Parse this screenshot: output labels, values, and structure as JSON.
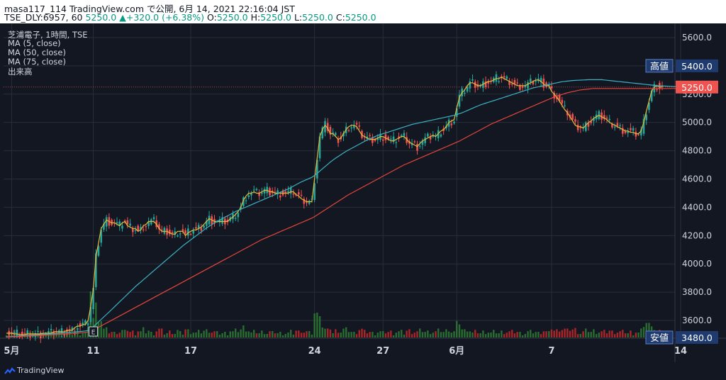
{
  "header": {
    "line1": "masa117_114 TradingView.com で公開, 6月 14, 2021 22:16:04 JST",
    "symbol": "TSE_DLY:6957, 60",
    "last": "5250.0",
    "change_arrow": "▲",
    "change": "+320.0 (+6.38%)",
    "o_label": "O:",
    "o_val": "5250.0",
    "h_label": "H:",
    "h_val": "5250.0",
    "l_label": "L:",
    "l_val": "5250.0",
    "c_label": "C:",
    "c_val": "5250.0"
  },
  "legend": {
    "title": "芝浦電子, 1時間, TSE",
    "ma5": "MA (5, close)",
    "ma50": "MA (50, close)",
    "ma75": "MA (75, close)",
    "volume": "出来高"
  },
  "markers": {
    "high_label": "高値",
    "high_value": "5400.0",
    "last_value": "5250.0",
    "low_label": "安値",
    "low_value": "3480.0",
    "earnings": "E"
  },
  "footer": {
    "brand": "TradingView"
  },
  "colors": {
    "up": "#26a69a",
    "down": "#ef5350",
    "ma5": "#e3b93b",
    "ma50": "#3bb3c4",
    "ma75": "#e5453a",
    "vol_up": "#2e7d32",
    "vol_down": "#c62828",
    "background": "#131722",
    "grid": "#2a2e39",
    "text": "#d1d4dc"
  },
  "chart_data": {
    "type": "line",
    "y_axis": {
      "min": 3480,
      "max": 5700,
      "ticks": [
        3600,
        3800,
        4000,
        4200,
        4400,
        4600,
        4800,
        5000,
        5200,
        5400,
        5600
      ],
      "position": "right"
    },
    "x_ticks": [
      {
        "label": "5月",
        "bar": 2
      },
      {
        "label": "11",
        "bar": 33
      },
      {
        "label": "17",
        "bar": 70
      },
      {
        "label": "24",
        "bar": 117
      },
      {
        "label": "27",
        "bar": 143
      },
      {
        "label": "6月",
        "bar": 171
      },
      {
        "label": "7",
        "bar": 207
      },
      {
        "label": "14",
        "bar": 256
      }
    ],
    "series": [
      {
        "name": "MA (5, close)",
        "values": [
          3510,
          3510,
          3510,
          3505,
          3505,
          3500,
          3500,
          3500,
          3505,
          3505,
          3505,
          3505,
          3505,
          3505,
          3510,
          3510,
          3510,
          3510,
          3520,
          3520,
          3520,
          3520,
          3520,
          3530,
          3530,
          3530,
          3550,
          3560,
          3560,
          3570,
          3570,
          3600,
          3700,
          3820,
          4050,
          4150,
          4250,
          4280,
          4310,
          4300,
          4290,
          4290,
          4280,
          4270,
          4290,
          4300,
          4270,
          4260,
          4250,
          4250,
          4230,
          4240,
          4270,
          4280,
          4300,
          4300,
          4300,
          4280,
          4250,
          4230,
          4230,
          4230,
          4220,
          4210,
          4210,
          4230,
          4230,
          4230,
          4200,
          4220,
          4230,
          4240,
          4240,
          4250,
          4260,
          4280,
          4300,
          4320,
          4310,
          4300,
          4300,
          4300,
          4300,
          4300,
          4300,
          4320,
          4330,
          4350,
          4370,
          4400,
          4450,
          4480,
          4500,
          4500,
          4510,
          4500,
          4500,
          4510,
          4520,
          4520,
          4510,
          4510,
          4500,
          4500,
          4500,
          4500,
          4500,
          4500,
          4510,
          4510,
          4490,
          4480,
          4460,
          4450,
          4440,
          4440,
          4440,
          4600,
          4750,
          4900,
          4950,
          4980,
          4960,
          4920,
          4920,
          4900,
          4880,
          4890,
          4920,
          4950,
          4970,
          4980,
          4980,
          4970,
          4940,
          4910,
          4900,
          4890,
          4880,
          4880,
          4880,
          4890,
          4900,
          4900,
          4890,
          4880,
          4870,
          4870,
          4880,
          4890,
          4900,
          4900,
          4880,
          4860,
          4850,
          4840,
          4830,
          4850,
          4870,
          4880,
          4890,
          4900,
          4910,
          4900,
          4920,
          4940,
          4950,
          4970,
          5000,
          5010,
          5020,
          5100,
          5180,
          5210,
          5230,
          5260,
          5280,
          5280,
          5270,
          5260,
          5260,
          5270,
          5280,
          5290,
          5290,
          5300,
          5310,
          5310,
          5320,
          5310,
          5300,
          5290,
          5280,
          5270,
          5260,
          5260,
          5260,
          5260,
          5270,
          5280,
          5290,
          5300,
          5300,
          5290,
          5270,
          5260,
          5260,
          5220,
          5200,
          5180,
          5150,
          5120,
          5090,
          5070,
          5040,
          5010,
          4980,
          4970,
          4970,
          4960,
          4980,
          5000,
          5010,
          5030,
          5040,
          5050,
          5040,
          5030,
          5020,
          5000,
          4990,
          4980,
          4970,
          4960,
          4950,
          4940,
          4940,
          4930,
          4930,
          4920,
          4920,
          4940,
          5000,
          5080,
          5150,
          5220,
          5250,
          5260,
          5250,
          5250
        ]
      },
      {
        "name": "MA (50, close)",
        "values": [
          3485,
          3486,
          3487,
          3488,
          3490,
          3491,
          3492,
          3493,
          3494,
          3495,
          3497,
          3498,
          3499,
          3500,
          3502,
          3503,
          3504,
          3506,
          3507,
          3508,
          3510,
          3511,
          3512,
          3514,
          3515,
          3517,
          3518,
          3520,
          3522,
          3524,
          3526,
          3530,
          3540,
          3555,
          3572,
          3590,
          3608,
          3625,
          3643,
          3660,
          3678,
          3696,
          3714,
          3732,
          3750,
          3768,
          3786,
          3804,
          3822,
          3840,
          3856,
          3872,
          3888,
          3904,
          3920,
          3936,
          3952,
          3968,
          3984,
          4000,
          4016,
          4032,
          4048,
          4064,
          4080,
          4096,
          4112,
          4128,
          4142,
          4156,
          4170,
          4184,
          4198,
          4212,
          4226,
          4240,
          4254,
          4266,
          4278,
          4290,
          4300,
          4310,
          4320,
          4330,
          4340,
          4350,
          4360,
          4370,
          4378,
          4386,
          4394,
          4402,
          4410,
          4418,
          4426,
          4434,
          4442,
          4450,
          4458,
          4466,
          4474,
          4482,
          4490,
          4498,
          4506,
          4514,
          4522,
          4530,
          4540,
          4550,
          4560,
          4570,
          4580,
          4588,
          4596,
          4604,
          4612,
          4625,
          4640,
          4656,
          4672,
          4688,
          4704,
          4720,
          4734,
          4748,
          4760,
          4772,
          4784,
          4796,
          4806,
          4816,
          4826,
          4836,
          4846,
          4856,
          4866,
          4876,
          4884,
          4892,
          4900,
          4908,
          4914,
          4920,
          4926,
          4932,
          4938,
          4944,
          4950,
          4956,
          4962,
          4968,
          4974,
          4980,
          4986,
          4990,
          4994,
          4998,
          5002,
          5006,
          5010,
          5014,
          5018,
          5022,
          5026,
          5030,
          5034,
          5038,
          5042,
          5046,
          5050,
          5056,
          5062,
          5068,
          5076,
          5084,
          5092,
          5100,
          5108,
          5116,
          5124,
          5130,
          5136,
          5142,
          5148,
          5154,
          5160,
          5166,
          5172,
          5178,
          5184,
          5190,
          5196,
          5202,
          5208,
          5214,
          5220,
          5226,
          5232,
          5238,
          5244,
          5248,
          5252,
          5256,
          5260,
          5264,
          5268,
          5272,
          5276,
          5280,
          5284,
          5288,
          5290,
          5292,
          5294,
          5296,
          5297,
          5298,
          5299,
          5300,
          5301,
          5302,
          5302,
          5302,
          5302,
          5302,
          5302,
          5300,
          5298,
          5296,
          5294,
          5292,
          5290,
          5288,
          5286,
          5284,
          5282,
          5280,
          5278,
          5276,
          5274,
          5272,
          5270,
          5268,
          5266,
          5264,
          5262,
          5260,
          5259,
          5258,
          5257,
          5256,
          5255,
          5254,
          5253,
          5252,
          5252,
          5252,
          5252,
          5252,
          5252,
          5252
        ]
      },
      {
        "name": "MA (75, close)",
        "values": [
          3482,
          3483,
          3484,
          3485,
          3486,
          3487,
          3488,
          3489,
          3490,
          3491,
          3492,
          3493,
          3494,
          3495,
          3496,
          3497,
          3498,
          3499,
          3500,
          3501,
          3502,
          3503,
          3504,
          3505,
          3506,
          3507,
          3508,
          3510,
          3512,
          3514,
          3516,
          3519,
          3524,
          3532,
          3542,
          3552,
          3562,
          3572,
          3582,
          3592,
          3602,
          3612,
          3622,
          3632,
          3642,
          3652,
          3662,
          3672,
          3682,
          3692,
          3702,
          3712,
          3722,
          3732,
          3742,
          3752,
          3762,
          3772,
          3782,
          3792,
          3802,
          3812,
          3822,
          3832,
          3842,
          3852,
          3862,
          3872,
          3882,
          3892,
          3902,
          3912,
          3922,
          3932,
          3942,
          3952,
          3962,
          3972,
          3982,
          3992,
          4002,
          4012,
          4022,
          4032,
          4042,
          4052,
          4062,
          4072,
          4082,
          4092,
          4102,
          4112,
          4122,
          4132,
          4142,
          4152,
          4162,
          4172,
          4180,
          4188,
          4196,
          4204,
          4212,
          4220,
          4228,
          4236,
          4244,
          4252,
          4260,
          4268,
          4276,
          4284,
          4292,
          4300,
          4308,
          4316,
          4324,
          4334,
          4346,
          4358,
          4370,
          4382,
          4394,
          4406,
          4418,
          4430,
          4442,
          4454,
          4466,
          4478,
          4490,
          4500,
          4510,
          4520,
          4530,
          4540,
          4550,
          4560,
          4570,
          4580,
          4590,
          4600,
          4610,
          4620,
          4630,
          4640,
          4650,
          4660,
          4670,
          4680,
          4690,
          4700,
          4708,
          4716,
          4724,
          4732,
          4740,
          4748,
          4756,
          4764,
          4772,
          4780,
          4788,
          4796,
          4804,
          4812,
          4820,
          4828,
          4836,
          4844,
          4852,
          4860,
          4868,
          4878,
          4888,
          4898,
          4908,
          4918,
          4928,
          4938,
          4948,
          4958,
          4968,
          4978,
          4988,
          4996,
          5004,
          5012,
          5020,
          5028,
          5036,
          5044,
          5052,
          5060,
          5068,
          5076,
          5084,
          5092,
          5100,
          5108,
          5116,
          5124,
          5132,
          5140,
          5148,
          5156,
          5164,
          5172,
          5180,
          5186,
          5192,
          5198,
          5204,
          5210,
          5214,
          5218,
          5222,
          5226,
          5230,
          5232,
          5234,
          5236,
          5238,
          5240,
          5240,
          5240,
          5240,
          5240,
          5240,
          5240,
          5240,
          5240,
          5240,
          5240,
          5240,
          5240,
          5240,
          5240,
          5240,
          5240,
          5240,
          5240,
          5240,
          5240,
          5240,
          5240,
          5240,
          5240,
          5240,
          5240,
          5240,
          5240,
          5240,
          5240,
          5240,
          5240,
          5240,
          5240,
          5240,
          5240
        ]
      }
    ],
    "volume_scale_max": 100,
    "high": 5400.0,
    "low": 3480.0,
    "last": 5250.0
  }
}
